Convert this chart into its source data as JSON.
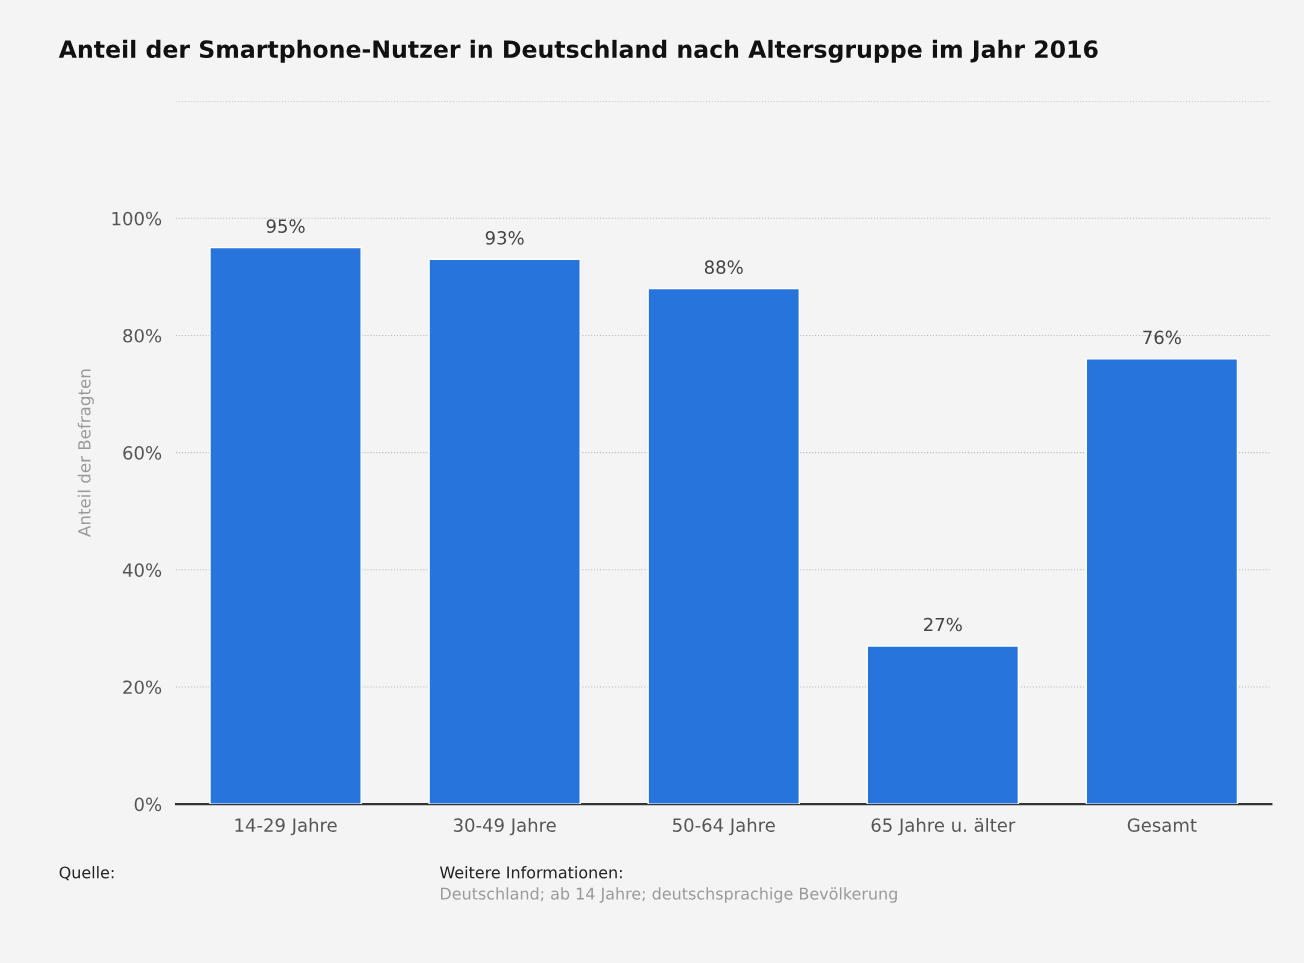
{
  "chart_data": {
    "type": "bar",
    "title": "Anteil der Smartphone-Nutzer in Deutschland nach Altersgruppe im Jahr 2016",
    "ylabel": "Anteil der Befragten",
    "categories": [
      "14-29 Jahre",
      "30-49 Jahre",
      "50-64 Jahre",
      "65 Jahre u. älter",
      "Gesamt"
    ],
    "values": [
      95,
      93,
      88,
      27,
      76
    ],
    "color": "#2775dc",
    "value_labels": [
      "95%",
      "93%",
      "88%",
      "27%",
      "76%"
    ],
    "ylim": [
      0,
      120
    ],
    "yticks": [
      {
        "value": 0,
        "label": "0%"
      },
      {
        "value": 20,
        "label": "20%"
      },
      {
        "value": 40,
        "label": "40%"
      },
      {
        "value": 60,
        "label": "60%"
      },
      {
        "value": 80,
        "label": "80%"
      },
      {
        "value": 100,
        "label": "100%"
      },
      {
        "value": 120,
        "label": null
      }
    ],
    "grid": "y",
    "legend": false,
    "annotations": [
      "Quelle:",
      "Weitere Informationen:",
      "Deutschland; ab 14 Jahre; deutschsprachige Bevölkerung"
    ]
  }
}
